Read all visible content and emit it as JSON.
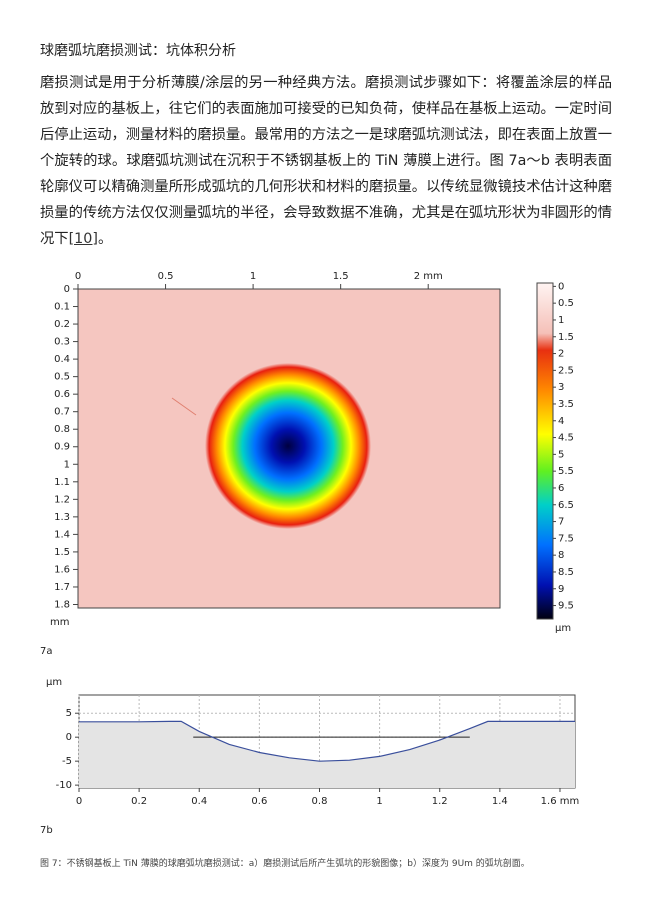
{
  "header": {
    "title": "球磨弧坑磨损测试：坑体积分析"
  },
  "paragraph": {
    "text": "磨损测试是用于分析薄膜/涂层的另一种经典方法。磨损测试步骤如下：将覆盖涂层的样品放到对应的基板上，往它们的表面施加可接受的已知负荷，使样品在基板上运动。一定时间后停止运动，测量材料的磨损量。最常用的方法之一是球磨弧坑测试法，即在表面上放置一个旋转的球。球磨弧坑测试在沉积于不锈钢基板上的 TiN 薄膜上进行。图 7a～b 表明表面轮廓仪可以精确测量所形成弧坑的几何形状和材料的磨损量。以传统显微镜技术估计这种磨损量的传统方法仅仅测量弧坑的半径，会导致数据不准确，尤其是在弧坑形状为非圆形的情况下",
    "ref": "[10]",
    "end": "。"
  },
  "figure_a": {
    "label": "7a",
    "xlim": [
      0,
      2.41
    ],
    "xticks": [
      0,
      0.5,
      1,
      1.5,
      {
        "value": 2,
        "label": "2 mm"
      }
    ],
    "ylim": [
      0,
      1.82
    ],
    "yticks": [
      0,
      0.1,
      0.2,
      0.3,
      0.4,
      0.5,
      0.6,
      0.7,
      0.8,
      0.9,
      1,
      1.1,
      1.2,
      1.3,
      1.4,
      1.5,
      1.6,
      1.7,
      1.8
    ],
    "y_unit": "mm",
    "clim": [
      -0.1,
      9.9
    ],
    "cticks": [
      0,
      0.5,
      1,
      1.5,
      2,
      2.5,
      3,
      3.5,
      4,
      4.5,
      5,
      5.5,
      6,
      6.5,
      7,
      7.5,
      8,
      8.5,
      9,
      9.5
    ],
    "c_unit": "µm"
  },
  "figure_b": {
    "label": "7b",
    "type": "line",
    "y_unit": "µm",
    "color": "#3a4f9c",
    "xlim": [
      0,
      1.65
    ],
    "xticks": [
      0,
      0.2,
      0.4,
      0.6,
      0.8,
      1,
      1.2,
      1.4,
      {
        "value": 1.6,
        "label": "1.6 mm"
      }
    ],
    "ylim": [
      -10.6,
      8.8
    ],
    "yticks": [
      5,
      0,
      -5,
      -10
    ],
    "x": [
      0,
      0.1,
      0.2,
      0.3,
      0.34,
      0.4,
      0.5,
      0.6,
      0.7,
      0.8,
      0.9,
      1.0,
      1.1,
      1.2,
      1.3,
      1.36,
      1.4,
      1.5,
      1.6,
      1.65
    ],
    "values": [
      3.2,
      3.2,
      3.2,
      3.3,
      3.3,
      1.2,
      -1.5,
      -3.2,
      -4.3,
      -5.0,
      -4.8,
      -4.0,
      -2.6,
      -0.6,
      1.8,
      3.3,
      3.3,
      3.3,
      3.3,
      3.3
    ]
  },
  "caption": "图 7：不锈钢基板上 TiN 薄膜的球磨弧坑磨损测试：a）磨损测试后所产生弧坑的形貌图像；b）深度为 9Um 的弧坑剖面。"
}
